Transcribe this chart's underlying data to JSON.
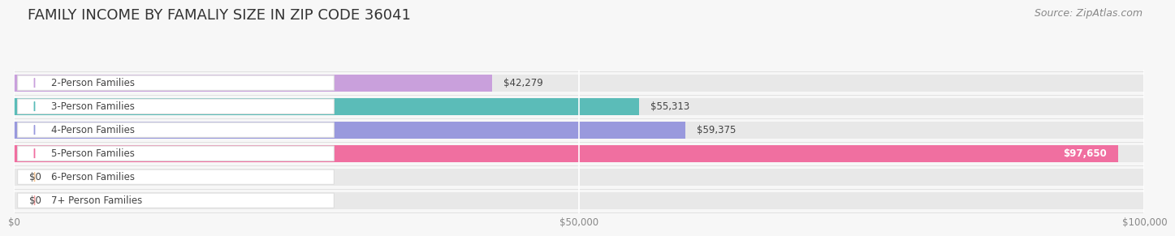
{
  "title": "FAMILY INCOME BY FAMALIY SIZE IN ZIP CODE 36041",
  "source": "Source: ZipAtlas.com",
  "categories": [
    "2-Person Families",
    "3-Person Families",
    "4-Person Families",
    "5-Person Families",
    "6-Person Families",
    "7+ Person Families"
  ],
  "values": [
    42279,
    55313,
    59375,
    97650,
    0,
    0
  ],
  "bar_colors": [
    "#c9a0dc",
    "#5bbcb8",
    "#9999dd",
    "#f06fa0",
    "#f7c899",
    "#f4a0a0"
  ],
  "value_labels": [
    "$42,279",
    "$55,313",
    "$59,375",
    "$97,650",
    "$0",
    "$0"
  ],
  "xlim": [
    0,
    100000
  ],
  "xticks": [
    0,
    50000,
    100000
  ],
  "xtick_labels": [
    "$0",
    "$50,000",
    "$100,000"
  ],
  "title_fontsize": 13,
  "label_fontsize": 8.5,
  "bg_color": "#f7f7f7",
  "bar_bg_color": "#e8e8e8",
  "source_fontsize": 9,
  "row_sep_color": "#dddddd"
}
